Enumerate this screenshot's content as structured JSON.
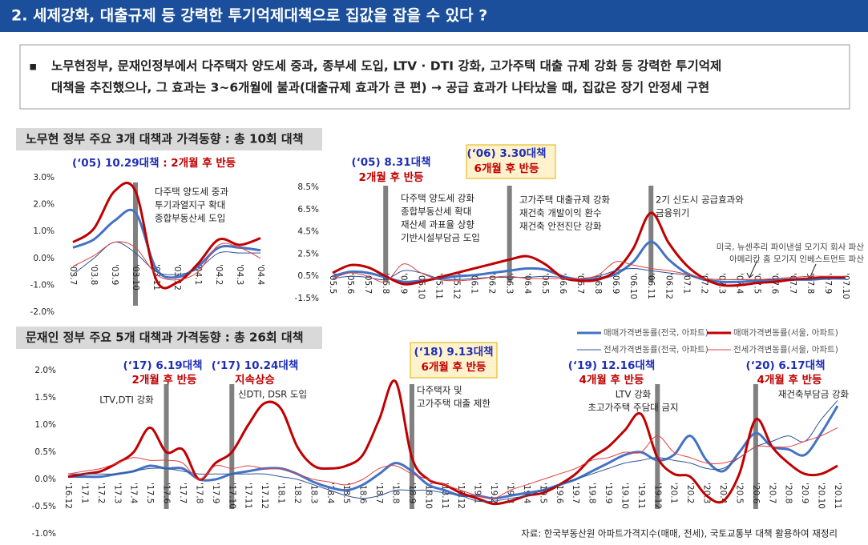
{
  "header": {
    "title": "2. 세제강화, 대출규제 등 강력한 투기억제대책으로 집값을 잡을 수 있다 ?"
  },
  "summary": {
    "bullet": "▪",
    "lines": [
      "노무현정부, 문재인정부에서 다주택자 양도세 중과, 종부세 도입, LTV · DTI 강화, 고가주택 대출 규제 강화 등 강력한 투기억제",
      "대책을 추진했으나, 그 효과는 3~6개월에 불과(대출규제 효과가 큰 편) → 공급 효과가 나타났을 때, 집값은 장기 안정세 구현"
    ]
  },
  "chart_data": [
    {
      "type": "line",
      "title": "노무현 정부 주요 3개 대책과 가격동향 : 총 10회 대책",
      "categories": [
        "'03.7",
        "'03.8",
        "'03.9",
        "'03.10",
        "'03.11",
        "'03.12",
        "'04.1",
        "'04.2",
        "'04.3",
        "'04.4"
      ],
      "series": [
        {
          "color": "#4472c4",
          "line_width": 3,
          "values": [
            0.4,
            0.7,
            1.4,
            1.7,
            -0.4,
            -0.7,
            -0.3,
            0.4,
            0.4,
            0.3
          ]
        },
        {
          "color": "#c00000",
          "line_width": 3,
          "values": [
            0.6,
            1.1,
            2.5,
            2.5,
            -0.8,
            -0.9,
            -0.2,
            0.7,
            0.5,
            0.75
          ]
        },
        {
          "color": "#2f5597",
          "line_width": 1,
          "values": [
            -0.6,
            0.0,
            0.6,
            0.2,
            -0.5,
            -0.6,
            -0.4,
            0.2,
            0.2,
            0.2
          ]
        },
        {
          "color": "#e04040",
          "line_width": 1,
          "values": [
            -0.3,
            0.1,
            0.6,
            0.4,
            -0.6,
            -0.8,
            -0.5,
            0.5,
            0.4,
            0.0
          ]
        }
      ],
      "ylim": [
        -2,
        3
      ],
      "yticks": [
        {
          "value": -2,
          "label": "-2.0%"
        },
        {
          "value": -1,
          "label": "-1.0%"
        },
        {
          "value": 0,
          "label": "0.0%"
        },
        {
          "value": 1,
          "label": "1.0%"
        },
        {
          "value": 2,
          "label": "2.0%"
        },
        {
          "value": 3,
          "label": "3.0%"
        }
      ],
      "policy_markers": [
        "'03.10"
      ],
      "annotations": [
        {
          "title": "(‘05) 10.29대책",
          "sub": " : 2개월 후 반등",
          "notes": [
            "다주택 양도세 중과",
            "투기과열지구 확대",
            "종합부동산세 도입"
          ]
        }
      ]
    },
    {
      "type": "line",
      "categories": [
        "'05.5",
        "'05.6",
        "'05.7",
        "'05.8",
        "'05.9",
        "'05.10",
        "'05.11",
        "'05.12",
        "'06.1",
        "'06.2",
        "'06.3",
        "'06.4",
        "'06.5",
        "'06.6",
        "'06.7",
        "'06.8",
        "'06.9",
        "'06.10",
        "'06.11",
        "'06.12",
        "'07.1",
        "'07.2",
        "'07.3",
        "'07.4",
        "'07.5",
        "'07.6",
        "'07.7",
        "'07.8",
        "'07.9",
        "'07.10"
      ],
      "series": [
        {
          "color": "#4472c4",
          "line_width": 3,
          "values": [
            0.5,
            0.9,
            0.8,
            0.4,
            0.0,
            0.1,
            0.3,
            0.5,
            0.6,
            0.8,
            1.0,
            1.2,
            1.1,
            0.5,
            0.2,
            0.3,
            0.7,
            1.8,
            3.6,
            2.0,
            0.8,
            0.2,
            0.0,
            0.0,
            0.1,
            0.1,
            0.2,
            0.2,
            0.3,
            0.3
          ]
        },
        {
          "color": "#c00000",
          "line_width": 3,
          "values": [
            0.8,
            1.5,
            1.3,
            0.5,
            -0.2,
            0.0,
            0.4,
            0.8,
            1.2,
            1.6,
            2.0,
            2.3,
            1.6,
            0.4,
            0.1,
            0.2,
            1.0,
            3.0,
            6.2,
            3.5,
            1.5,
            0.3,
            -0.3,
            -0.3,
            -0.1,
            0.0,
            0.2,
            0.3,
            0.4,
            0.4
          ]
        },
        {
          "color": "#2f5597",
          "line_width": 1,
          "values": [
            0.3,
            0.5,
            0.4,
            0.2,
            1.0,
            0.8,
            0.3,
            0.2,
            0.3,
            0.4,
            0.4,
            0.4,
            0.5,
            0.4,
            0.3,
            0.5,
            1.0,
            1.2,
            1.0,
            0.8,
            0.6,
            0.3,
            0.2,
            0.2,
            0.2,
            0.2,
            0.3,
            0.3,
            0.3,
            0.3
          ]
        },
        {
          "color": "#e04040",
          "line_width": 1,
          "values": [
            0.3,
            0.8,
            0.5,
            0.0,
            1.6,
            0.8,
            0.2,
            0.1,
            0.2,
            0.4,
            0.5,
            0.3,
            0.3,
            0.3,
            0.3,
            0.6,
            1.8,
            1.5,
            1.2,
            1.0,
            0.7,
            0.3,
            0.2,
            0.2,
            0.2,
            0.3,
            0.4,
            0.5,
            0.5,
            0.5
          ]
        }
      ],
      "ylim": [
        -1.5,
        8.5
      ],
      "yticks": [
        {
          "value": -1.5,
          "label": "-1.5%"
        },
        {
          "value": 0.5,
          "label": "0.5%"
        },
        {
          "value": 2.5,
          "label": "2.5%"
        },
        {
          "value": 4.5,
          "label": "4.5%"
        },
        {
          "value": 6.5,
          "label": "6.5%"
        },
        {
          "value": 8.5,
          "label": "8.5%"
        }
      ],
      "policy_markers": [
        "'05.8",
        "'06.3",
        "'06.11"
      ],
      "annotations": [
        {
          "title": "(‘05) 8.31대책",
          "sub": "2개월 후 반등",
          "notes": [
            "다주택 양도세 강화",
            "종합부동산세 확대",
            "재산세 과표율 상향",
            "기반시설부담금 도입"
          ]
        },
        {
          "title": "(‘06) 3.30대책",
          "sub": "6개월 후 반등",
          "boxed": true,
          "notes": [
            "고가주택 대출규제 강화",
            "재건축 개발이익 환수",
            "재건축 안전진단 강화"
          ]
        },
        {
          "notes": [
            "2기 신도시 공급효과와",
            "금융위기"
          ]
        },
        {
          "notes": [
            "미국, 뉴센추리 파이낸셜 모기지 회사 파산",
            "아메리칸 홈 모기지 인베스트먼트 파산"
          ]
        }
      ]
    },
    {
      "type": "line",
      "title": "문재인 정부 주요 5개 대책과 가격동향 : 총 26회 대책",
      "categories": [
        "'16.12",
        "'17.1",
        "'17.2",
        "'17.3",
        "'17.4",
        "'17.5",
        "'17.6",
        "'17.7",
        "'17.8",
        "'17.9",
        "'17.10",
        "'17.11",
        "'17.12",
        "'18.1",
        "'18.2",
        "'18.3",
        "'18.4",
        "'18.5",
        "'18.6",
        "'18.7",
        "'18.8",
        "'18.9",
        "'18.10",
        "'18.11",
        "'18.12",
        "'19.1",
        "'19.2",
        "'19.3",
        "'19.4",
        "'19.5",
        "'19.6",
        "'19.7",
        "'19.8",
        "'19.9",
        "'19.10",
        "'19.11",
        "'19.12",
        "'20.1",
        "'20.2",
        "'20.3",
        "'20.4",
        "'20.5",
        "'20.6",
        "'20.7",
        "'20.8",
        "'20.9",
        "'20.10",
        "'20.11"
      ],
      "series": [
        {
          "name": "매매가격변동률(전국, 아파트)",
          "color": "#4472c4",
          "line_width": 3,
          "values": [
            0.05,
            0.05,
            0.05,
            0.1,
            0.15,
            0.25,
            0.2,
            0.2,
            0.0,
            0.0,
            0.1,
            0.15,
            0.2,
            0.2,
            0.1,
            -0.05,
            -0.15,
            -0.2,
            -0.1,
            0.1,
            0.3,
            0.15,
            -0.1,
            -0.2,
            -0.3,
            -0.3,
            -0.35,
            -0.3,
            -0.25,
            -0.2,
            -0.1,
            0.0,
            0.15,
            0.3,
            0.45,
            0.5,
            0.35,
            0.45,
            0.8,
            0.35,
            0.15,
            0.5,
            0.85,
            0.6,
            0.55,
            0.45,
            0.85,
            1.35
          ]
        },
        {
          "name": "매매가격변동률(서울, 아파트)",
          "color": "#c00000",
          "line_width": 3,
          "values": [
            0.05,
            0.1,
            0.15,
            0.3,
            0.5,
            0.95,
            0.5,
            0.55,
            0.0,
            0.3,
            0.5,
            1.0,
            1.4,
            1.3,
            0.6,
            0.25,
            0.2,
            0.25,
            0.45,
            1.1,
            1.8,
            0.4,
            0.0,
            -0.1,
            -0.25,
            -0.35,
            -0.45,
            -0.4,
            -0.3,
            -0.25,
            -0.1,
            0.1,
            0.4,
            0.6,
            0.9,
            1.2,
            0.4,
            0.1,
            0.05,
            -0.3,
            -0.4,
            0.1,
            1.1,
            0.6,
            0.3,
            0.1,
            0.1,
            0.25
          ]
        },
        {
          "name": "전세가격변동률(전국, 아파트)",
          "color": "#2f5597",
          "line_width": 1,
          "values": [
            0.1,
            0.1,
            0.1,
            0.1,
            0.15,
            0.2,
            0.2,
            0.15,
            0.1,
            0.1,
            0.1,
            0.1,
            0.1,
            0.05,
            0.0,
            -0.1,
            -0.2,
            -0.3,
            -0.35,
            -0.3,
            -0.2,
            -0.2,
            -0.2,
            -0.25,
            -0.3,
            -0.4,
            -0.4,
            -0.35,
            -0.3,
            -0.2,
            -0.1,
            0.0,
            0.1,
            0.2,
            0.3,
            0.35,
            0.4,
            0.35,
            0.3,
            0.2,
            0.2,
            0.4,
            0.6,
            0.7,
            0.8,
            0.7,
            1.1,
            1.45
          ]
        },
        {
          "name": "전세가격변동률(서울, 아파트)",
          "color": "#e04040",
          "line_width": 1,
          "values": [
            0.1,
            0.15,
            0.2,
            0.3,
            0.4,
            0.35,
            0.35,
            0.3,
            0.0,
            0.25,
            0.2,
            0.25,
            0.2,
            0.2,
            0.1,
            0.0,
            -0.05,
            -0.1,
            0.0,
            0.2,
            0.25,
            0.1,
            0.0,
            -0.1,
            -0.2,
            -0.3,
            -0.35,
            -0.2,
            -0.1,
            0.0,
            0.1,
            0.2,
            0.35,
            0.4,
            0.5,
            0.5,
            0.8,
            0.5,
            0.4,
            0.3,
            0.3,
            0.4,
            0.6,
            0.6,
            0.6,
            0.7,
            0.8,
            0.95
          ]
        }
      ],
      "ylim": [
        -1,
        2
      ],
      "yticks": [
        {
          "value": -1,
          "label": "-1.0%"
        },
        {
          "value": -0.5,
          "label": "-0.5%"
        },
        {
          "value": 0,
          "label": "0.0%"
        },
        {
          "value": 0.5,
          "label": "0.5%"
        },
        {
          "value": 1,
          "label": "1.0%"
        },
        {
          "value": 1.5,
          "label": "1.5%"
        },
        {
          "value": 2,
          "label": "2.0%"
        }
      ],
      "policy_markers": [
        "'17.6",
        "'17.10",
        "'18.9",
        "'19.12",
        "'20.6"
      ],
      "annotations": [
        {
          "title": "(‘17) 6.19대책",
          "sub": "2개월 후 반등",
          "notes": [
            "LTV,DTI 강화"
          ]
        },
        {
          "title": "(‘17) 10.24대책",
          "sub": "지속상승",
          "notes": [
            "신DTI, DSR 도입"
          ]
        },
        {
          "title": "(‘18) 9.13대책",
          "sub": "6개월 후 반등",
          "boxed": true,
          "notes": [
            "다주택자 및",
            "고가주택 대출 제한"
          ]
        },
        {
          "title": "(‘19) 12.16대책",
          "sub": "4개월 후 반등",
          "notes": [
            "LTV 강화",
            "초고가주택 주담대 금지"
          ]
        },
        {
          "title": "(‘20) 6.17대책",
          "sub": "4개월 후 반등",
          "notes": [
            "재건축부담금 강화"
          ]
        }
      ],
      "legend": "top-right",
      "source": "자료: 한국부동산원 아파트가격지수(매매, 전세), 국토교통부 대책 활용하여 재정리"
    }
  ]
}
